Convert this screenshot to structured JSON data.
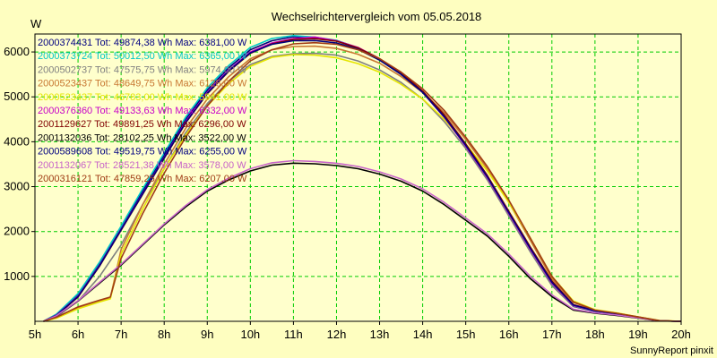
{
  "chart_data": {
    "type": "line",
    "title": "Wechselrichtervergleich vom 05.05.2018",
    "ylabel": "W",
    "xlabel": "",
    "xlim": [
      5,
      20
    ],
    "ylim": [
      0,
      6400
    ],
    "x_ticks": [
      5,
      6,
      7,
      8,
      9,
      10,
      11,
      12,
      13,
      14,
      15,
      16,
      17,
      18,
      19,
      20
    ],
    "x_tick_labels": [
      "5h",
      "6h",
      "7h",
      "8h",
      "9h",
      "10h",
      "11h",
      "12h",
      "13h",
      "14h",
      "15h",
      "16h",
      "17h",
      "18h",
      "19h",
      "20h"
    ],
    "y_ticks": [
      1000,
      2000,
      3000,
      4000,
      5000,
      6000
    ],
    "y_tick_labels": [
      "1000",
      "2000",
      "3000",
      "4000",
      "5000",
      "6000"
    ],
    "grid": true,
    "legend_position": "top-left",
    "footer": "SunnyReport pinxit",
    "series": [
      {
        "name": "2000374431 Tot: 49874,38 Wh Max: 6381,00 W",
        "color": "#000080",
        "x": [
          5.2,
          5.5,
          6,
          6.5,
          7,
          7.5,
          8,
          8.5,
          9,
          9.5,
          10,
          10.5,
          11,
          11.5,
          12,
          12.5,
          13,
          13.5,
          14,
          14.5,
          15,
          15.5,
          16,
          16.5,
          17,
          17.5,
          18,
          18.5,
          19,
          19.5,
          20
        ],
        "y": [
          0,
          150,
          600,
          1300,
          2100,
          2900,
          3700,
          4500,
          5150,
          5650,
          6050,
          6250,
          6340,
          6320,
          6250,
          6080,
          5820,
          5500,
          5100,
          4550,
          3900,
          3200,
          2350,
          1550,
          800,
          330,
          220,
          160,
          80,
          10,
          0
        ]
      },
      {
        "name": "2000373724 Tot: 50012,50 Wh Max: 6365,00 W",
        "color": "#00c8c8",
        "x": [
          5.2,
          5.5,
          6,
          6.5,
          7,
          7.5,
          8,
          8.5,
          9,
          9.5,
          10,
          10.5,
          11,
          11.5,
          12,
          12.5,
          13,
          13.5,
          14,
          14.5,
          15,
          15.5,
          16,
          16.5,
          17,
          17.5,
          18,
          18.5,
          19,
          19.5,
          20
        ],
        "y": [
          0,
          160,
          620,
          1320,
          2120,
          2950,
          3750,
          4550,
          5200,
          5700,
          6100,
          6300,
          6365,
          6330,
          6260,
          6090,
          5830,
          5510,
          5110,
          4560,
          3910,
          3210,
          2360,
          1560,
          810,
          340,
          225,
          165,
          85,
          10,
          0
        ]
      },
      {
        "name": "2000502737 Tot: 47575,75 Wh Max: 5974,00 W",
        "color": "#808080",
        "x": [
          5.2,
          5.5,
          6,
          6.5,
          7,
          7.5,
          8,
          8.5,
          9,
          9.5,
          10,
          10.5,
          11,
          11.5,
          12,
          12.5,
          13,
          13.5,
          14,
          14.5,
          15,
          15.5,
          16,
          16.5,
          17,
          17.5,
          18,
          18.5,
          19,
          19.5,
          20
        ],
        "y": [
          0,
          100,
          450,
          1000,
          1700,
          2600,
          3400,
          4200,
          4850,
          5350,
          5720,
          5900,
          5960,
          5970,
          5930,
          5800,
          5600,
          5320,
          4950,
          4450,
          3850,
          3150,
          2350,
          1550,
          800,
          340,
          230,
          170,
          90,
          10,
          0
        ]
      },
      {
        "name": "2000523437 Tot: 48649,75 Wh Max: 6128,00 W",
        "color": "#c87832",
        "x": [
          5.2,
          5.5,
          6,
          6.5,
          6.75,
          7,
          7.5,
          8,
          8.5,
          9,
          9.5,
          10,
          10.5,
          11,
          11.5,
          12,
          12.5,
          13,
          13.5,
          14,
          14.5,
          15,
          15.5,
          16,
          16.5,
          17,
          17.5,
          18,
          18.5,
          19,
          19.5,
          20
        ],
        "y": [
          0,
          80,
          300,
          450,
          520,
          1600,
          2600,
          3500,
          4300,
          4950,
          5450,
          5850,
          6050,
          6120,
          6128,
          6080,
          5950,
          5750,
          5450,
          5100,
          4650,
          4050,
          3400,
          2650,
          1800,
          950,
          420,
          250,
          180,
          100,
          15,
          0
        ]
      },
      {
        "name": "2000523437 Tot: 46783,00 Wh Max: 5941,00 W",
        "color": "#e6e600",
        "x": [
          5.2,
          5.5,
          6,
          6.5,
          6.75,
          7,
          7.5,
          8,
          8.5,
          9,
          9.5,
          10,
          10.5,
          11,
          11.5,
          12,
          12.5,
          13,
          13.5,
          14,
          14.5,
          15,
          15.5,
          16,
          16.5,
          17,
          17.5,
          18,
          18.5,
          19,
          19.5,
          20
        ],
        "y": [
          0,
          70,
          280,
          430,
          500,
          1500,
          2500,
          3400,
          4150,
          4800,
          5300,
          5680,
          5880,
          5941,
          5930,
          5870,
          5740,
          5550,
          5280,
          4950,
          4500,
          3950,
          3350,
          2650,
          1850,
          1000,
          450,
          260,
          190,
          100,
          15,
          0
        ]
      },
      {
        "name": "2000376360 Tot: 49133,63 Wh Max: 6332,00 W",
        "color": "#c800c8",
        "x": [
          5.2,
          5.5,
          6,
          6.5,
          7,
          7.5,
          8,
          8.5,
          9,
          9.5,
          10,
          10.5,
          11,
          11.5,
          12,
          12.5,
          13,
          13.5,
          14,
          14.5,
          15,
          15.5,
          16,
          16.5,
          17,
          17.5,
          18,
          18.5,
          19,
          19.5,
          20
        ],
        "y": [
          0,
          140,
          560,
          1250,
          2050,
          2850,
          3650,
          4450,
          5100,
          5600,
          6000,
          6200,
          6300,
          6332,
          6250,
          6100,
          5850,
          5520,
          5100,
          4550,
          3900,
          3200,
          2400,
          1600,
          850,
          350,
          230,
          170,
          90,
          10,
          0
        ]
      },
      {
        "name": "2001129627 Tot: 49891,25 Wh Max: 6296,00 W",
        "color": "#800000",
        "x": [
          5.2,
          5.5,
          6,
          6.5,
          7,
          7.5,
          8,
          8.5,
          9,
          9.5,
          10,
          10.5,
          11,
          11.5,
          12,
          12.5,
          13,
          13.5,
          14,
          14.5,
          15,
          15.5,
          16,
          16.5,
          17,
          17.5,
          18,
          18.5,
          19,
          19.5,
          20
        ],
        "y": [
          0,
          130,
          540,
          1230,
          2030,
          2830,
          3630,
          4420,
          5070,
          5570,
          5970,
          6180,
          6280,
          6296,
          6240,
          6090,
          5850,
          5530,
          5130,
          4600,
          3950,
          3250,
          2450,
          1650,
          900,
          370,
          240,
          175,
          95,
          12,
          0
        ]
      },
      {
        "name": "2001132036 Tot: 28102,25 Wh Max: 3522,00 W",
        "color": "#000000",
        "x": [
          5.2,
          5.5,
          6,
          6.5,
          7,
          7.5,
          8,
          8.5,
          9,
          9.5,
          10,
          10.5,
          11,
          11.5,
          12,
          12.5,
          13,
          13.5,
          14,
          14.5,
          15,
          15.5,
          16,
          16.5,
          17,
          17.5,
          18,
          18.5,
          19,
          19.5,
          20
        ],
        "y": [
          0,
          120,
          450,
          850,
          1250,
          1700,
          2150,
          2550,
          2900,
          3150,
          3350,
          3480,
          3522,
          3510,
          3470,
          3400,
          3280,
          3120,
          2900,
          2600,
          2250,
          1900,
          1450,
          950,
          550,
          250,
          180,
          130,
          70,
          8,
          0
        ]
      },
      {
        "name": "2000589608 Tot: 49519,75 Wh Max: 6255,00 W",
        "color": "#000080",
        "x": [
          5.2,
          5.5,
          6,
          6.5,
          7,
          7.5,
          8,
          8.5,
          9,
          9.5,
          10,
          10.5,
          11,
          11.5,
          12,
          12.5,
          13,
          13.5,
          14,
          14.5,
          15,
          15.5,
          16,
          16.5,
          17,
          17.5,
          18,
          18.5,
          19,
          19.5,
          20
        ],
        "y": [
          0,
          135,
          550,
          1240,
          2040,
          2840,
          3640,
          4430,
          5080,
          5580,
          5980,
          6170,
          6250,
          6255,
          6200,
          6060,
          5820,
          5500,
          5100,
          4560,
          3920,
          3220,
          2420,
          1620,
          870,
          360,
          235,
          170,
          90,
          10,
          0
        ]
      },
      {
        "name": "2001132067 Tot: 28521,38 Wh Max: 3578,00 W",
        "color": "#c864c8",
        "x": [
          5.2,
          5.5,
          6,
          6.5,
          7,
          7.5,
          8,
          8.5,
          9,
          9.5,
          10,
          10.5,
          11,
          11.5,
          12,
          12.5,
          13,
          13.5,
          14,
          14.5,
          15,
          15.5,
          16,
          16.5,
          17,
          17.5,
          18,
          18.5,
          19,
          19.5,
          20
        ],
        "y": [
          0,
          125,
          460,
          870,
          1270,
          1720,
          2170,
          2580,
          2930,
          3190,
          3400,
          3530,
          3578,
          3560,
          3520,
          3450,
          3330,
          3170,
          2950,
          2650,
          2300,
          1950,
          1500,
          1000,
          590,
          270,
          190,
          140,
          75,
          9,
          0
        ]
      },
      {
        "name": "2000316121 Tot: 47859,25 Wh Max: 6207,00 W",
        "color": "#a03c14",
        "x": [
          5.2,
          5.5,
          6,
          6.5,
          6.75,
          7,
          7.5,
          8,
          8.5,
          9,
          9.5,
          10,
          10.5,
          11,
          11.5,
          12,
          12.5,
          13,
          13.5,
          14,
          14.5,
          15,
          15.5,
          16,
          16.5,
          17,
          17.5,
          18,
          18.5,
          19,
          19.5,
          20
        ],
        "y": [
          0,
          90,
          320,
          470,
          540,
          1400,
          2400,
          3300,
          4100,
          4800,
          5350,
          5800,
          6050,
          6180,
          6207,
          6170,
          6050,
          5850,
          5550,
          5180,
          4700,
          4100,
          3450,
          2700,
          1850,
          1000,
          430,
          250,
          180,
          95,
          12,
          0
        ]
      }
    ]
  }
}
